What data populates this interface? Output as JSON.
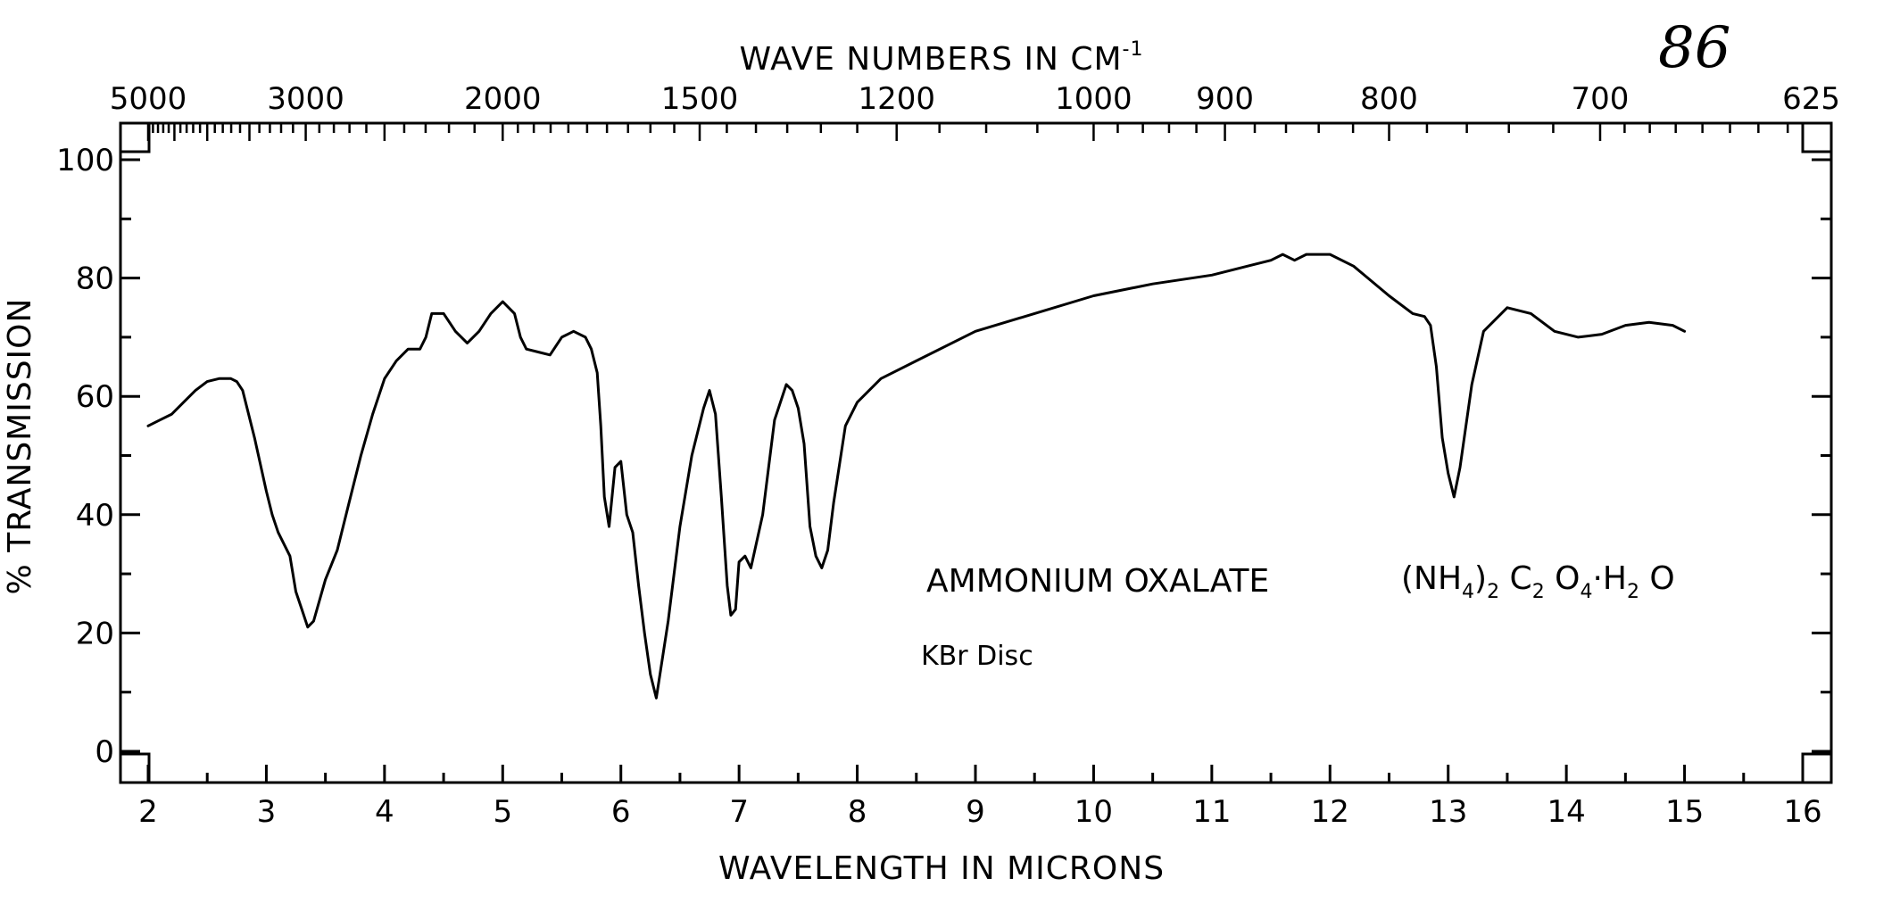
{
  "page_number": "86",
  "chart_data": {
    "type": "line",
    "title": "",
    "top_axis_label": "WAVE NUMBERS IN CM",
    "top_axis_label_superscript": "-1",
    "xlabel": "WAVELENGTH IN MICRONS",
    "ylabel": "% TRANSMISSION",
    "xlim": [
      2,
      16
    ],
    "ylim": [
      0,
      100
    ],
    "x_ticks": [
      2,
      3,
      4,
      5,
      6,
      7,
      8,
      9,
      10,
      11,
      12,
      13,
      14,
      15,
      16
    ],
    "y_ticks": [
      0,
      20,
      40,
      60,
      80,
      100
    ],
    "top_ticks": [
      {
        "label": "5000",
        "wavenumber": 5000
      },
      {
        "label": "3000",
        "wavenumber": 3000
      },
      {
        "label": "2000",
        "wavenumber": 2000
      },
      {
        "label": "1500",
        "wavenumber": 1500
      },
      {
        "label": "1200",
        "wavenumber": 1200
      },
      {
        "label": "1000",
        "wavenumber": 1000
      },
      {
        "label": "900",
        "wavenumber": 900
      },
      {
        "label": "800",
        "wavenumber": 800
      },
      {
        "label": "700",
        "wavenumber": 700
      },
      {
        "label": "625",
        "wavenumber": 625
      }
    ],
    "grid": false,
    "annotation": {
      "compound_name": "AMMONIUM   OXALATE",
      "formula_parts": [
        "(NH",
        "4",
        ")",
        "2",
        " C",
        "2",
        " O",
        "4",
        "·H",
        "2",
        " O"
      ],
      "sample_note": "KBr Disc"
    },
    "series": [
      {
        "x": [
          2.0,
          2.1,
          2.2,
          2.3,
          2.4,
          2.5,
          2.6,
          2.7,
          2.75,
          2.8,
          2.9,
          3.0,
          3.05,
          3.1,
          3.2,
          3.25,
          3.3,
          3.35,
          3.4,
          3.5,
          3.6,
          3.7,
          3.8,
          3.9,
          4.0,
          4.1,
          4.2,
          4.3,
          4.35,
          4.4,
          4.5,
          4.6,
          4.7,
          4.8,
          4.9,
          5.0,
          5.1,
          5.15,
          5.2,
          5.3,
          5.4,
          5.5,
          5.6,
          5.7,
          5.75,
          5.8,
          5.83,
          5.86,
          5.9,
          5.95,
          6.0,
          6.05,
          6.1,
          6.15,
          6.2,
          6.25,
          6.3,
          6.4,
          6.5,
          6.6,
          6.7,
          6.75,
          6.8,
          6.85,
          6.9,
          6.93,
          6.97,
          7.0,
          7.05,
          7.1,
          7.2,
          7.3,
          7.4,
          7.45,
          7.5,
          7.55,
          7.6,
          7.65,
          7.7,
          7.75,
          7.8,
          7.9,
          8.0,
          8.2,
          8.5,
          9.0,
          9.5,
          10.0,
          10.5,
          11.0,
          11.3,
          11.5,
          11.6,
          11.7,
          11.8,
          12.0,
          12.2,
          12.5,
          12.7,
          12.8,
          12.85,
          12.9,
          12.95,
          13.0,
          13.05,
          13.1,
          13.2,
          13.3,
          13.5,
          13.7,
          13.9,
          14.1,
          14.3,
          14.5,
          14.7,
          14.9,
          15.0
        ],
        "y": [
          55,
          56,
          57,
          59,
          61,
          62.5,
          63,
          63,
          62.5,
          61,
          53,
          44,
          40,
          37,
          33,
          27,
          24,
          21,
          22,
          29,
          34,
          42,
          50,
          57,
          63,
          66,
          68,
          68,
          70,
          74,
          74,
          71,
          69,
          71,
          74,
          76,
          74,
          70,
          68,
          67.5,
          67,
          70,
          71,
          70,
          68,
          64,
          55,
          43,
          38,
          48,
          49,
          40,
          37,
          28,
          20,
          13,
          9,
          22,
          38,
          50,
          58,
          61,
          57,
          43,
          28,
          23,
          24,
          32,
          33,
          31,
          40,
          56,
          62,
          61,
          58,
          52,
          38,
          33,
          31,
          34,
          42,
          55,
          59,
          63,
          66,
          71,
          74,
          77,
          79,
          80.5,
          82,
          83,
          84,
          83,
          84,
          84,
          82,
          77,
          74,
          73.5,
          72,
          65,
          53,
          47,
          43,
          48,
          62,
          71,
          75,
          74,
          71,
          70,
          70.5,
          72,
          72.5,
          72,
          71
        ]
      }
    ]
  }
}
